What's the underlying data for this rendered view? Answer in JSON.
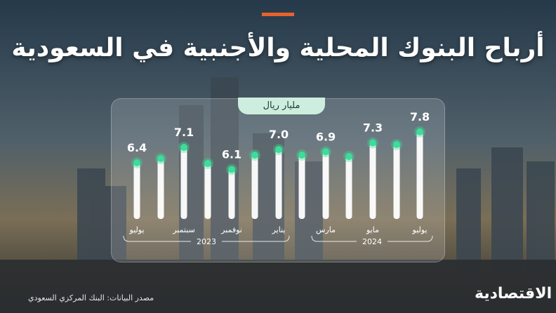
{
  "header": {
    "title": "أرباح البنوك المحلية والأجنبية في السعودية",
    "accent_color": "#e8622c"
  },
  "chart_data": {
    "type": "bar",
    "unit_label": "مليار ريال",
    "categories": [
      "يوليو",
      "",
      "سبتمبر",
      "",
      "نوفمبر",
      "",
      "يناير",
      "",
      "مارس",
      "",
      "مايو",
      "",
      "يوليو"
    ],
    "values": [
      6.4,
      null,
      7.1,
      null,
      6.1,
      null,
      7.0,
      null,
      6.9,
      null,
      7.3,
      null,
      7.8
    ],
    "value_labels": [
      "6.4",
      "",
      "7.1",
      "",
      "6.1",
      "",
      "7.0",
      "",
      "6.9",
      "",
      "7.3",
      "",
      "7.8"
    ],
    "years": [
      {
        "label": "2023"
      },
      {
        "label": "2024"
      }
    ],
    "bar_color": "#ffffff",
    "marker_color": "#3ddc9a"
  },
  "footer": {
    "source": "مصدر البيانات: البنك المركزي السعودي",
    "logo": "الاقتصادية"
  }
}
